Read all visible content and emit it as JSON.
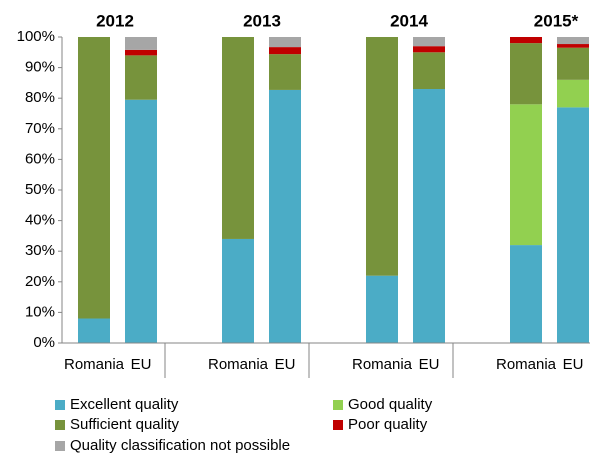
{
  "chart_data": {
    "type": "stacked_bar",
    "group_labels": [
      "2012",
      "2013",
      "2014",
      "2015*"
    ],
    "categories": [
      "Romania",
      "EU",
      "Romania",
      "EU",
      "Romania",
      "EU",
      "Romania",
      "EU"
    ],
    "series": [
      {
        "name": "Excellent quality",
        "color": "#4bacc6",
        "values": [
          8,
          79.5,
          34,
          82.7,
          22,
          83,
          32,
          77
        ]
      },
      {
        "name": "Good quality",
        "color": "#92d050",
        "values": [
          0,
          0,
          0,
          0,
          0,
          0,
          46,
          9
        ]
      },
      {
        "name": "Sufficient quality",
        "color": "#77933c",
        "values": [
          92,
          14.5,
          66,
          11.7,
          78,
          12,
          20,
          10.5
        ]
      },
      {
        "name": "Poor quality",
        "color": "#c00000",
        "values": [
          0,
          1.8,
          0,
          2.3,
          0,
          2,
          2,
          1.2
        ]
      },
      {
        "name": "Quality classification not possible",
        "color": "#a6a6a6",
        "values": [
          0,
          4.2,
          0,
          3.3,
          0,
          3,
          0,
          2.3
        ]
      }
    ],
    "ylim": [
      0,
      100
    ],
    "yticks": [
      {
        "value": 0,
        "label": "0%"
      },
      {
        "value": 10,
        "label": "10%"
      },
      {
        "value": 20,
        "label": "20%"
      },
      {
        "value": 30,
        "label": "30%"
      },
      {
        "value": 40,
        "label": "40%"
      },
      {
        "value": 50,
        "label": "50%"
      },
      {
        "value": 60,
        "label": "60%"
      },
      {
        "value": 70,
        "label": "70%"
      },
      {
        "value": 80,
        "label": "80%"
      },
      {
        "value": 90,
        "label": "90%"
      },
      {
        "value": 100,
        "label": "100%"
      }
    ],
    "grid": false
  }
}
